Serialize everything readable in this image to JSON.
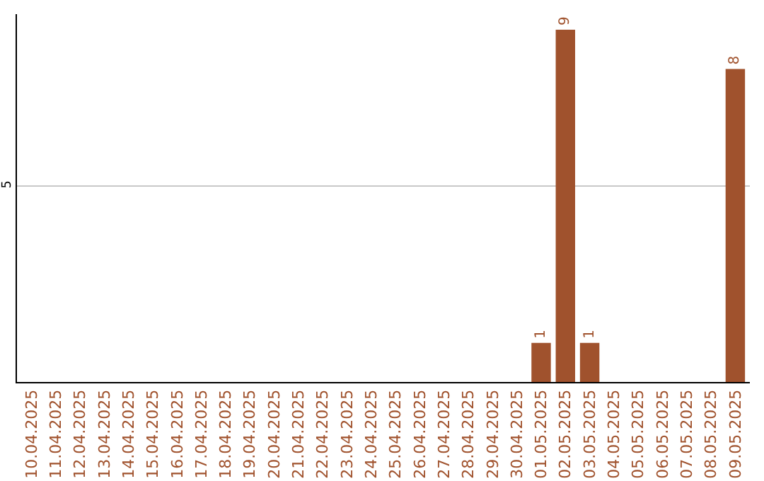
{
  "chart_data": {
    "type": "bar",
    "categories": [
      "10.04.2025",
      "11.04.2025",
      "12.04.2025",
      "13.04.2025",
      "14.04.2025",
      "15.04.2025",
      "16.04.2025",
      "17.04.2025",
      "18.04.2025",
      "19.04.2025",
      "20.04.2025",
      "21.04.2025",
      "22.04.2025",
      "23.04.2025",
      "24.04.2025",
      "25.04.2025",
      "26.04.2025",
      "27.04.2025",
      "28.04.2025",
      "29.04.2025",
      "30.04.2025",
      "01.05.2025",
      "02.05.2025",
      "03.05.2025",
      "04.05.2025",
      "05.05.2025",
      "06.05.2025",
      "07.05.2025",
      "08.05.2025",
      "09.05.2025"
    ],
    "values": [
      null,
      null,
      null,
      null,
      null,
      null,
      null,
      null,
      null,
      null,
      null,
      null,
      null,
      null,
      null,
      null,
      null,
      null,
      null,
      null,
      null,
      1,
      9,
      1,
      null,
      null,
      null,
      null,
      null,
      8
    ],
    "color": "#a0522d",
    "ylim": [
      0,
      9.4
    ],
    "yticks": [
      5
    ],
    "grid": "y",
    "data_labels": true
  }
}
